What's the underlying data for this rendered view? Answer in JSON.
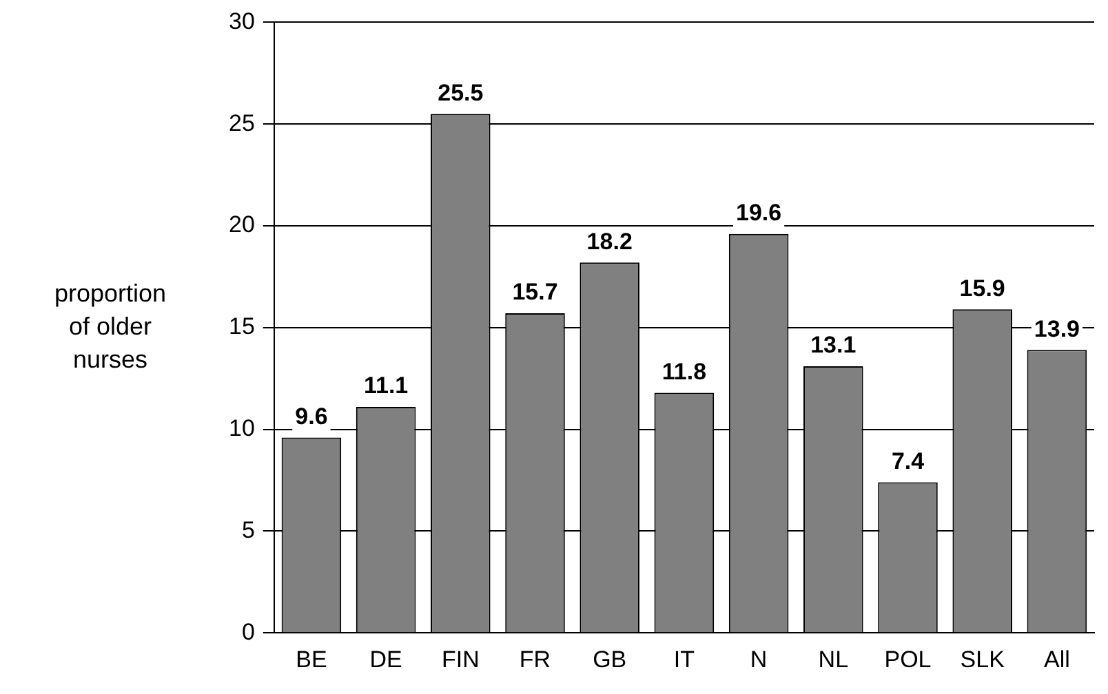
{
  "chart_data": {
    "type": "bar",
    "ylabel": "proportion of older nurses",
    "categories": [
      "BE",
      "DE",
      "FIN",
      "FR",
      "GB",
      "IT",
      "N",
      "NL",
      "POL",
      "SLK",
      "All"
    ],
    "values": [
      9.6,
      11.1,
      25.5,
      15.7,
      18.2,
      11.8,
      19.6,
      13.1,
      7.4,
      15.9,
      13.9
    ],
    "color": "#808080",
    "ylim": [
      0,
      30
    ],
    "yticks": [
      0,
      5,
      10,
      15,
      20,
      25,
      30
    ],
    "grid": "y",
    "data_labels": true,
    "legend": false
  }
}
